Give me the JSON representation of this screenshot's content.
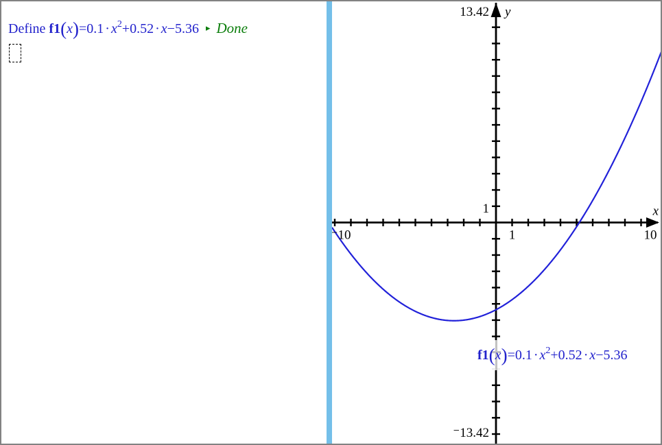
{
  "app": {
    "title": "TI-Nspire split view: calculator page and graphs page",
    "border_color": "#828282"
  },
  "calculator_page": {
    "define_prefix": "Define ",
    "result_arrow": "▸",
    "result": "Done"
  },
  "equation": {
    "name": "f1",
    "lparen": "(",
    "variable": "x",
    "rparen": ")",
    "equals": "=",
    "coef_a": "0.1",
    "dot1": "·",
    "x1": "x",
    "exponent": "2",
    "plus_term": "+0.52",
    "dot2": "·",
    "x2": "x",
    "const_term": "−5.36"
  },
  "divider": {
    "color": "#74bfe9"
  },
  "colors": {
    "math_text": "#2222cc",
    "result_green": "#0a7d0a",
    "curve": "#2121d9",
    "axis": "#000000",
    "dimmed_axis": "#c2c2c2",
    "window_border": "#828282"
  },
  "chart_data": {
    "type": "line",
    "function": "f1(x) = 0.1*x^2 + 0.52*x - 5.36",
    "coefficients": {
      "a": 0.1,
      "b": 0.52,
      "c": -5.36
    },
    "xlim": [
      -10,
      10
    ],
    "ylim": [
      -13.42,
      13.42
    ],
    "x_tick_step": 1,
    "y_tick_step": 1,
    "xlabel": "x",
    "ylabel": "y",
    "grid": false,
    "legend": "none",
    "x_tick_labels": [
      {
        "value": -10,
        "text": "⁻10"
      },
      {
        "value": 1,
        "text": "1"
      },
      {
        "value": 10,
        "text": "10"
      }
    ],
    "y_tick_labels": [
      {
        "value": 13.42,
        "text": "13.42"
      },
      {
        "value": 1,
        "text": "1"
      },
      {
        "value": -13.42,
        "text": "⁻13.42"
      }
    ],
    "curve_color": "#2121d9",
    "axis_color": "#000000"
  }
}
